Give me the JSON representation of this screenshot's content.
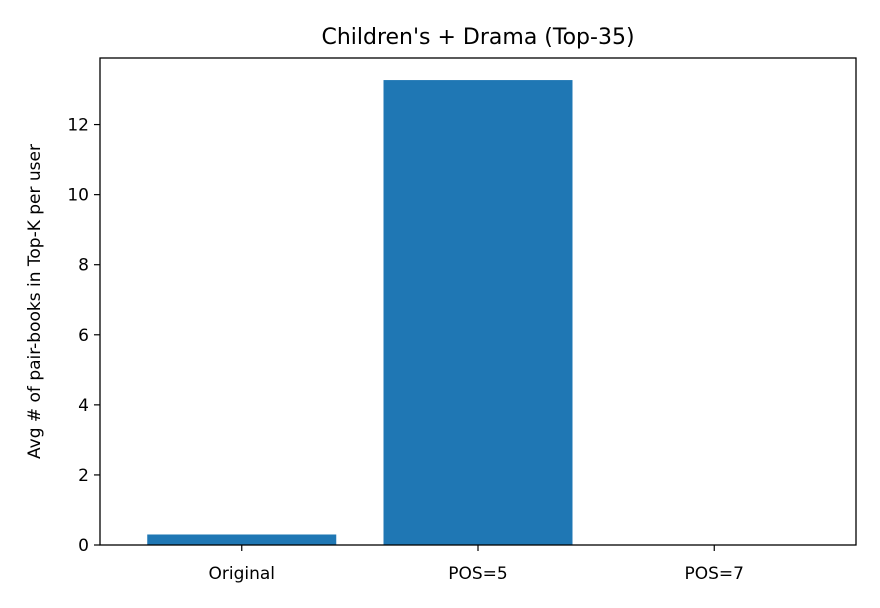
{
  "chart_data": {
    "type": "bar",
    "title": "Children's + Drama (Top-35)",
    "xlabel": "",
    "ylabel": "Avg # of pair-books in Top-K per user",
    "categories": [
      "Original",
      "POS=5",
      "POS=7"
    ],
    "values": [
      0.3,
      13.27,
      0.0
    ],
    "ylim": [
      0,
      13.9
    ],
    "yticks": [
      0,
      2,
      4,
      6,
      8,
      10,
      12
    ],
    "bar_color": "#1f77b4",
    "grid": false,
    "legend": "none"
  }
}
